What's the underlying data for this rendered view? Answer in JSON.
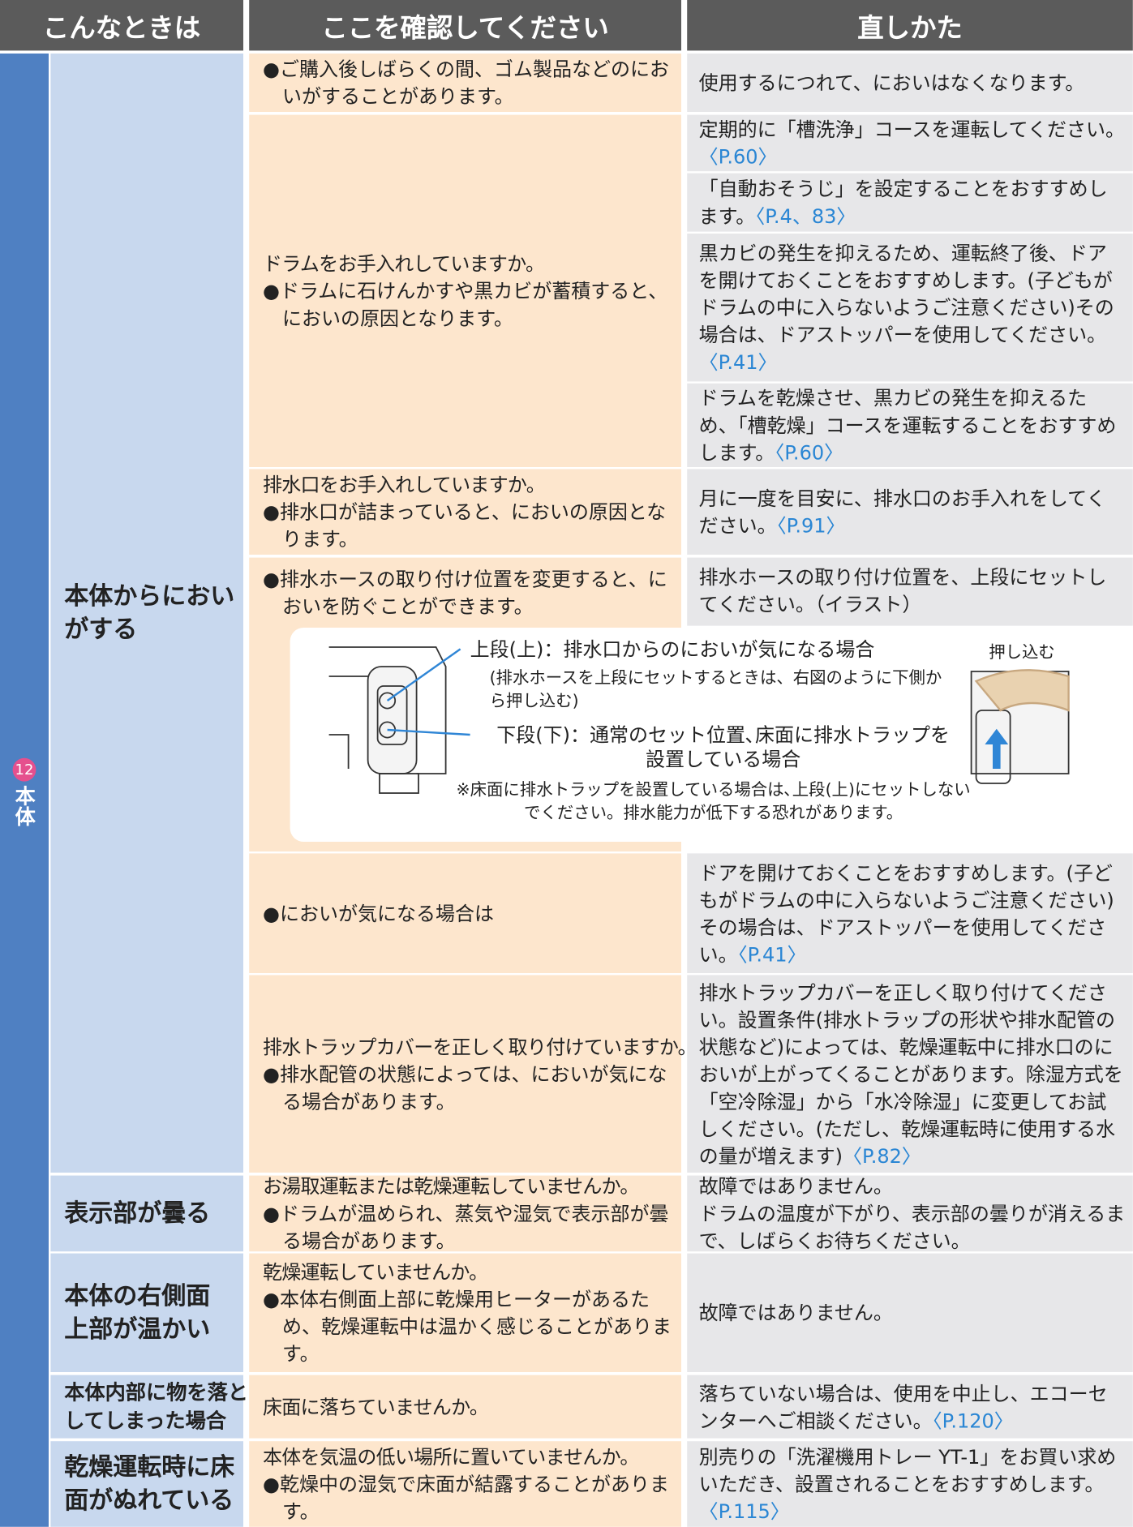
{
  "header": {
    "col1": "こんなときは",
    "col2": "ここを確認してください",
    "col3": "直しかた"
  },
  "section": {
    "number": "12",
    "label": "本体"
  },
  "rows": [
    {
      "symptom": "本体からにおい\nがする",
      "checks": [
        {
          "bullet": "●ご購入後しばらくの間、ゴム製品などのにおいがすることがあります。",
          "remedies": [
            {
              "text": "使用するにつれて、においはなくなります。"
            }
          ]
        },
        {
          "heading": "ドラムをお手入れしていますか。",
          "bullet": "●ドラムに石けんかすや黒カビが蓄積すると、においの原因となります。",
          "remedies": [
            {
              "text": "定期的に「槽洗浄」コースを運転してください。",
              "ref": "〈P.60〉"
            },
            {
              "text": "「自動おそうじ」を設定することをおすすめします。",
              "ref": "〈P.4、83〉"
            },
            {
              "text": "黒カビの発生を抑えるため、運転終了後、ドアを開けておくことをおすすめします。(子どもがドラムの中に入らないようご注意ください)その場合は、ドアストッパーを使用してください。",
              "ref": "〈P.41〉"
            },
            {
              "text": "ドラムを乾燥させ、黒カビの発生を抑えるため、「槽乾燥」コースを運転することをおすすめします。",
              "ref": "〈P.60〉"
            }
          ]
        },
        {
          "heading": "排水口をお手入れしていますか。",
          "bullet": "●排水口が詰まっていると、においの原因となります。",
          "remedies": [
            {
              "text": "月に一度を目安に、排水口のお手入れをしてください。",
              "ref": "〈P.91〉"
            }
          ]
        },
        {
          "bullet": "●排水ホースの取り付け位置を変更すると、においを防ぐことができます。",
          "remedies": [
            {
              "text": "排水ホースの取り付け位置を、上段にセットしてください。（イラスト）"
            }
          ]
        },
        {
          "bullet": "●においが気になる場合は",
          "remedies": [
            {
              "text": "ドアを開けておくことをおすすめします。(子どもがドラムの中に入らないようご注意ください)その場合は、ドアストッパーを使用してください。",
              "ref": "〈P.41〉"
            }
          ]
        },
        {
          "heading": "排水トラップカバーを正しく取り付けていますか。",
          "bullet": "●排水配管の状態によっては、においが気になる場合があります。",
          "remedies": [
            {
              "text": "排水トラップカバーを正しく取り付けてください。設置条件(排水トラップの形状や排水配管の状態など)によっては、乾燥運転中に排水口のにおいが上がってくることがあります。除湿方式を「空冷除湿」から「水冷除湿」に変更してお試しください。(ただし、乾燥運転時に使用する水の量が増えます)",
              "ref": "〈P.82〉"
            }
          ]
        }
      ]
    },
    {
      "symptom": "表示部が曇る",
      "checks": [
        {
          "heading": "お湯取運転または乾燥運転していませんか。",
          "bullet": "●ドラムが温められ、蒸気や湿気で表示部が曇る場合があります。",
          "remedies": [
            {
              "text": "故障ではありません。\nドラムの温度が下がり、表示部の曇りが消えるまで、しばらくお待ちください。"
            }
          ]
        }
      ]
    },
    {
      "symptom": "本体の右側面\n上部が温かい",
      "checks": [
        {
          "heading": "乾燥運転していませんか。",
          "bullet": "●本体右側面上部に乾燥用ヒーターがあるため、乾燥運転中は温かく感じることがあります。",
          "remedies": [
            {
              "text": "故障ではありません。"
            }
          ]
        }
      ]
    },
    {
      "symptom": "本体内部に物を落と\nしてしまった場合",
      "checks": [
        {
          "heading": "床面に落ちていませんか。",
          "remedies": [
            {
              "text": "落ちていない場合は、使用を中止し、エコーセンターへご相談ください。",
              "ref": "〈P.120〉"
            }
          ]
        }
      ]
    },
    {
      "symptom": "乾燥運転時に床\n面がぬれている",
      "checks": [
        {
          "heading": "本体を気温の低い場所に置いていませんか。",
          "bullet": "●乾燥中の湿気で床面が結露することがあります。",
          "remedies": [
            {
              "text": "別売りの「洗濯機用トレー YT-1」をお買い求めいただき、設置されることをおすすめします。",
              "ref": "〈P.115〉"
            }
          ]
        }
      ]
    }
  ],
  "illustration": {
    "upper": "上段(上)：排水口からのにおいが気になる場合",
    "upper_note": "(排水ホースを上段にセットするときは、右図のように下側から押し込む)",
    "lower": "下段(下)：通常のセット位置､床面に排水トラップを設置している場合",
    "caution": "※床面に排水トラップを設置している場合は､上段(上)にセットしないでください。排水能力が低下する恐れがあります。",
    "push_label": "押し込む"
  }
}
